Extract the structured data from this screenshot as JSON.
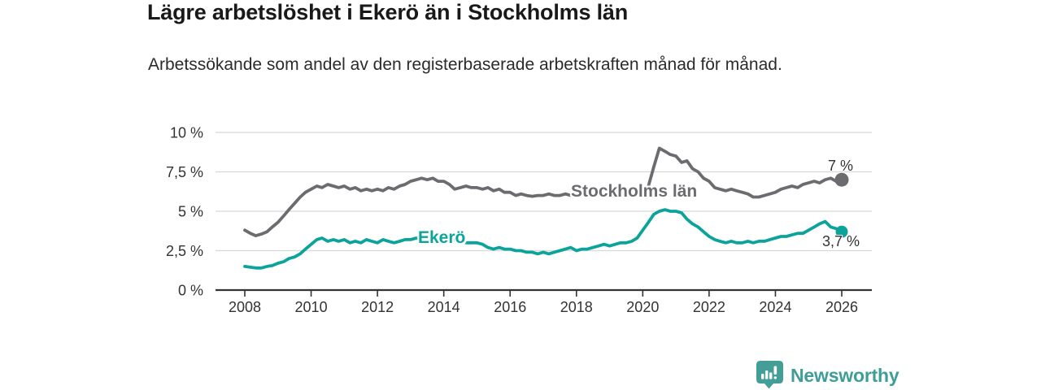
{
  "header": {
    "title": "Lägre arbetslöshet i Ekerö än i Stockholms län",
    "subtitle": "Arbetssökande som andel av den registerbaserade arbetskraften månad för månad."
  },
  "footer": {
    "brand": "Newsworthy",
    "logo_icon": "newsworthy-speech-bubble-bar-chart-icon",
    "brand_color": "#3f9d97"
  },
  "colors": {
    "stockholm_line": "#6b6b70",
    "ekero_line": "#0ca49a",
    "gridline": "#d8d8d8",
    "axis": "#333333",
    "axis_text": "#333333"
  },
  "chart_data": {
    "type": "line",
    "title": "Lägre arbetslöshet i Ekerö än i Stockholms län",
    "subtitle": "Arbetssökande som andel av den registerbaserade arbetskraften månad för månad.",
    "xlabel": "",
    "ylabel": "",
    "xlim": [
      2008,
      2026
    ],
    "ylim": [
      0,
      10
    ],
    "grid": "horizontal",
    "legend": "inline-line-labels",
    "x_unit": "decimal-year",
    "yticks": [
      {
        "v": 0,
        "label": "0 %"
      },
      {
        "v": 2.5,
        "label": "2,5 %"
      },
      {
        "v": 5,
        "label": "5 %"
      },
      {
        "v": 7.5,
        "label": "7,5 %"
      },
      {
        "v": 10,
        "label": "10 %"
      }
    ],
    "xticks": [
      {
        "v": 2008,
        "label": "2008"
      },
      {
        "v": 2010,
        "label": "2010"
      },
      {
        "v": 2012,
        "label": "2012"
      },
      {
        "v": 2014,
        "label": "2014"
      },
      {
        "v": 2016,
        "label": "2016"
      },
      {
        "v": 2018,
        "label": "2018"
      },
      {
        "v": 2020,
        "label": "2020"
      },
      {
        "v": 2022,
        "label": "2022"
      },
      {
        "v": 2024,
        "label": "2024"
      },
      {
        "v": 2026,
        "label": "2026"
      }
    ],
    "x": [
      2008,
      2008.17,
      2008.33,
      2008.5,
      2008.67,
      2008.83,
      2009,
      2009.17,
      2009.33,
      2009.5,
      2009.67,
      2009.83,
      2010,
      2010.17,
      2010.33,
      2010.5,
      2010.67,
      2010.83,
      2011,
      2011.17,
      2011.33,
      2011.5,
      2011.67,
      2011.83,
      2012,
      2012.17,
      2012.33,
      2012.5,
      2012.67,
      2012.83,
      2013,
      2013.17,
      2013.33,
      2013.5,
      2013.67,
      2013.83,
      2014,
      2014.17,
      2014.33,
      2014.5,
      2014.67,
      2014.83,
      2015,
      2015.17,
      2015.33,
      2015.5,
      2015.67,
      2015.83,
      2016,
      2016.17,
      2016.33,
      2016.5,
      2016.67,
      2016.83,
      2017,
      2017.17,
      2017.33,
      2017.5,
      2017.67,
      2017.83,
      2018,
      2018.17,
      2018.33,
      2018.5,
      2018.67,
      2018.83,
      2019,
      2019.17,
      2019.33,
      2019.5,
      2019.67,
      2019.83,
      2020,
      2020.17,
      2020.33,
      2020.5,
      2020.67,
      2020.83,
      2021,
      2021.17,
      2021.33,
      2021.5,
      2021.67,
      2021.83,
      2022,
      2022.17,
      2022.33,
      2022.5,
      2022.67,
      2022.83,
      2023,
      2023.17,
      2023.33,
      2023.5,
      2023.67,
      2023.83,
      2024,
      2024.17,
      2024.33,
      2024.5,
      2024.67,
      2024.83,
      2025,
      2025.17,
      2025.33,
      2025.5,
      2025.67,
      2025.83,
      2026
    ],
    "series": [
      {
        "id": "stockholm",
        "name": "Stockholms län",
        "color": "#6b6b70",
        "end_label": "7 %",
        "end_value": 7.0,
        "values": [
          3.8,
          3.6,
          3.45,
          3.55,
          3.7,
          4.0,
          4.3,
          4.7,
          5.1,
          5.5,
          5.9,
          6.2,
          6.4,
          6.6,
          6.5,
          6.7,
          6.6,
          6.5,
          6.6,
          6.4,
          6.5,
          6.3,
          6.4,
          6.3,
          6.4,
          6.3,
          6.5,
          6.4,
          6.6,
          6.7,
          6.9,
          7.0,
          7.1,
          7.0,
          7.1,
          6.9,
          6.9,
          6.7,
          6.4,
          6.5,
          6.6,
          6.5,
          6.5,
          6.4,
          6.5,
          6.3,
          6.4,
          6.2,
          6.2,
          6.0,
          6.1,
          6.0,
          5.95,
          6.0,
          6.0,
          6.1,
          6.0,
          6.0,
          6.1,
          6.0,
          6.0,
          6.1,
          6.0,
          6.1,
          6.0,
          6.1,
          6.1,
          6.0,
          6.1,
          6.1,
          6.0,
          6.1,
          6.1,
          6.6,
          7.8,
          9.0,
          8.8,
          8.6,
          8.5,
          8.1,
          8.2,
          7.7,
          7.5,
          7.1,
          6.9,
          6.5,
          6.4,
          6.3,
          6.4,
          6.3,
          6.2,
          6.1,
          5.9,
          5.9,
          6.0,
          6.1,
          6.2,
          6.4,
          6.5,
          6.6,
          6.5,
          6.7,
          6.8,
          6.9,
          6.8,
          7.0,
          7.1,
          6.9,
          7.0
        ]
      },
      {
        "id": "ekero",
        "name": "Ekerö",
        "color": "#0ca49a",
        "end_label": "3,7 %",
        "end_value": 3.7,
        "values": [
          1.5,
          1.45,
          1.4,
          1.4,
          1.5,
          1.55,
          1.7,
          1.8,
          2.0,
          2.1,
          2.3,
          2.6,
          2.9,
          3.2,
          3.3,
          3.1,
          3.2,
          3.1,
          3.2,
          3.0,
          3.1,
          3.0,
          3.2,
          3.1,
          3.0,
          3.2,
          3.1,
          3.0,
          3.1,
          3.2,
          3.2,
          3.3,
          3.2,
          3.3,
          3.2,
          3.1,
          3.2,
          3.1,
          3.2,
          3.1,
          3.0,
          3.0,
          3.0,
          2.9,
          2.7,
          2.6,
          2.7,
          2.6,
          2.6,
          2.5,
          2.5,
          2.4,
          2.4,
          2.3,
          2.4,
          2.3,
          2.4,
          2.5,
          2.6,
          2.7,
          2.5,
          2.6,
          2.6,
          2.7,
          2.8,
          2.9,
          2.8,
          2.9,
          3.0,
          3.0,
          3.1,
          3.3,
          3.8,
          4.3,
          4.8,
          5.0,
          5.1,
          5.0,
          5.0,
          4.9,
          4.5,
          4.2,
          4.0,
          3.7,
          3.4,
          3.2,
          3.1,
          3.0,
          3.1,
          3.0,
          3.0,
          3.1,
          3.0,
          3.1,
          3.1,
          3.2,
          3.3,
          3.4,
          3.4,
          3.5,
          3.6,
          3.6,
          3.8,
          4.0,
          4.2,
          4.35,
          4.0,
          3.9,
          3.7
        ]
      }
    ]
  }
}
